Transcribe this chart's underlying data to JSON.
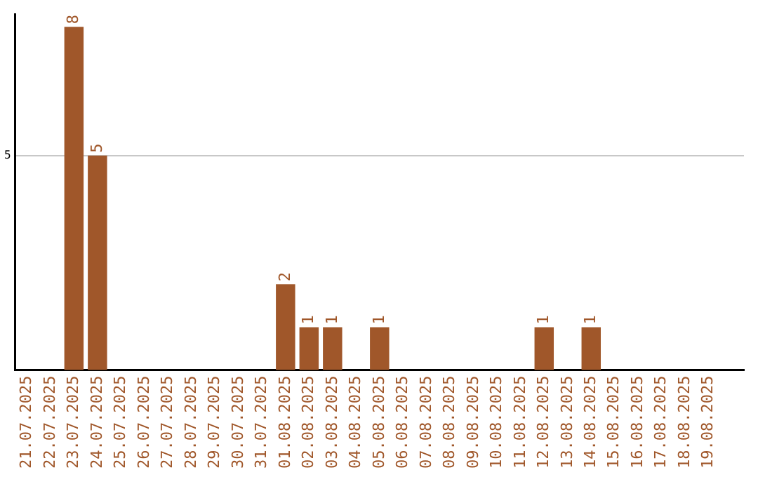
{
  "chart_data": {
    "type": "bar",
    "categories": [
      "21.07.2025",
      "22.07.2025",
      "23.07.2025",
      "24.07.2025",
      "25.07.2025",
      "26.07.2025",
      "27.07.2025",
      "28.07.2025",
      "29.07.2025",
      "30.07.2025",
      "31.07.2025",
      "01.08.2025",
      "02.08.2025",
      "03.08.2025",
      "04.08.2025",
      "05.08.2025",
      "06.08.2025",
      "07.08.2025",
      "08.08.2025",
      "09.08.2025",
      "10.08.2025",
      "11.08.2025",
      "12.08.2025",
      "13.08.2025",
      "14.08.2025",
      "15.08.2025",
      "16.08.2025",
      "17.08.2025",
      "18.08.2025",
      "19.08.2025",
      null
    ],
    "values": [
      0,
      0,
      8,
      5,
      0,
      0,
      0,
      0,
      0,
      0,
      0,
      2,
      1,
      1,
      0,
      1,
      0,
      0,
      0,
      0,
      0,
      0,
      1,
      0,
      1,
      0,
      0,
      0,
      0,
      0,
      null
    ],
    "value_labels": [
      null,
      null,
      "8",
      "5",
      null,
      null,
      null,
      null,
      null,
      null,
      null,
      "2",
      "1",
      "1",
      null,
      "1",
      null,
      null,
      null,
      null,
      null,
      null,
      "1",
      null,
      "1",
      null,
      null,
      null,
      null,
      null,
      null
    ],
    "color": "#a0572a",
    "ylim": [
      0,
      8.3
    ],
    "yticks": [
      5
    ],
    "grid": "y",
    "legend": false
  }
}
